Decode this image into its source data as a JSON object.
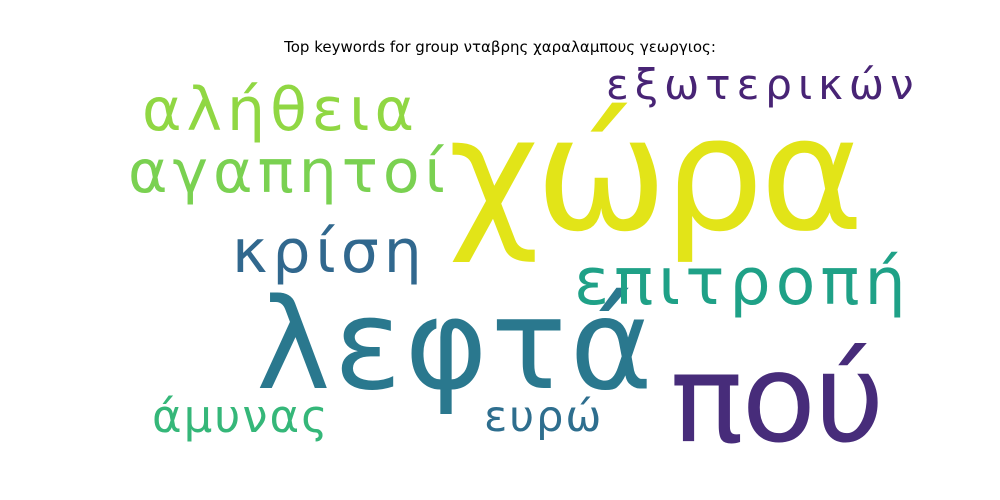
{
  "title": "Top keywords for group νταβρης χαραλαμπους γεωργιος:",
  "words": [
    {
      "text": "χώρα",
      "color": "#e2e418"
    },
    {
      "text": "λεφτά",
      "color": "#2a788e"
    },
    {
      "text": "πού",
      "color": "#472c7a"
    },
    {
      "text": "επιτροπή",
      "color": "#1fa187"
    },
    {
      "text": "αλήθεια",
      "color": "#90d743"
    },
    {
      "text": "αγαπητοί",
      "color": "#7ad151"
    },
    {
      "text": "εξωτερικών",
      "color": "#482475"
    },
    {
      "text": "κρίση",
      "color": "#31688e"
    },
    {
      "text": "άμυνας",
      "color": "#35b779"
    },
    {
      "text": "ευρώ",
      "color": "#2e6e8e"
    }
  ]
}
